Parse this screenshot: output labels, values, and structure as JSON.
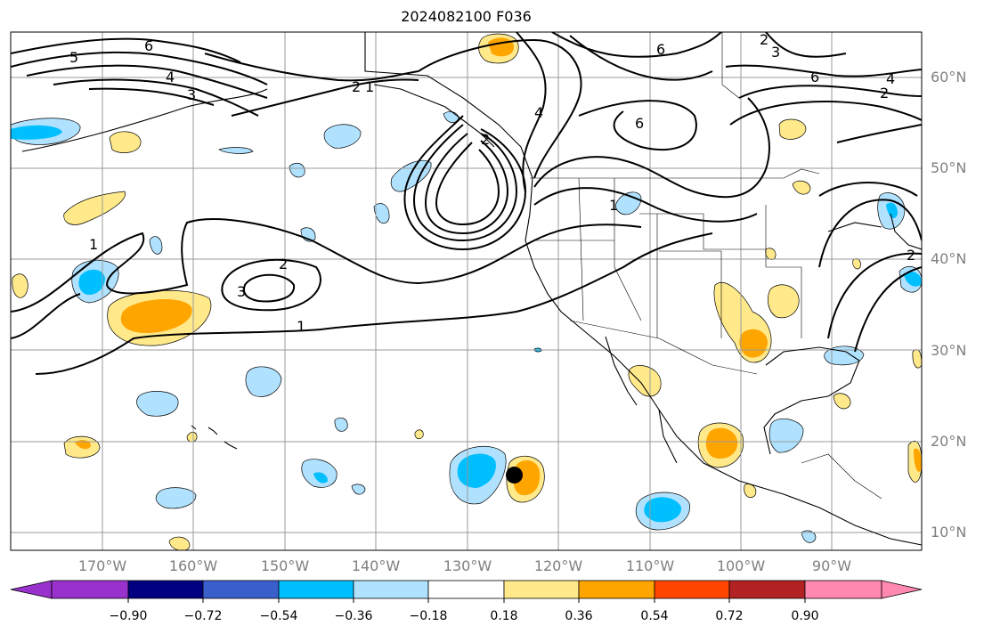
{
  "title": "2024082100 F036",
  "lat_labels": [
    "60°N",
    "50°N",
    "40°N",
    "30°N",
    "20°N",
    "10°N"
  ],
  "lon_labels": [
    "170°W",
    "160°W",
    "150°W",
    "140°W",
    "130°W",
    "120°W",
    "110°W",
    "100°W",
    "90°W"
  ],
  "contour_labels": [
    "5",
    "6",
    "4",
    "3",
    "2",
    "1",
    "2",
    "6",
    "4",
    "6",
    "2",
    "3",
    "6",
    "2",
    "4",
    "1",
    "2",
    "3",
    "1",
    "1",
    "2"
  ],
  "colorbar": {
    "ticks": [
      "−0.90",
      "−0.72",
      "−0.54",
      "−0.36",
      "−0.18",
      "0.18",
      "0.36",
      "0.54",
      "0.72",
      "0.90"
    ],
    "colors": [
      "#9932cc",
      "#000080",
      "#3a5fcd",
      "#00bfff",
      "#b0e2ff",
      "#ffffff",
      "#ffe98a",
      "#ffa500",
      "#ff4500",
      "#b22222",
      "#ff88b0"
    ]
  },
  "marker": {
    "label": "",
    "color": "#000000"
  }
}
